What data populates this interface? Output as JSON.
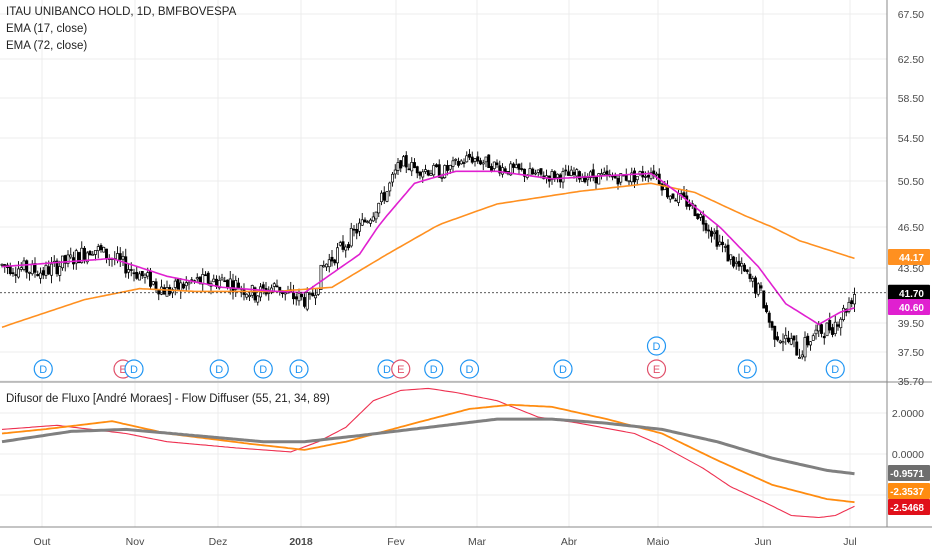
{
  "header": {
    "symbol_line": "ITAU UNIBANCO HOLD, 1D, BMFBOVESPA",
    "ema_fast_label": "EMA (17, close)",
    "ema_slow_label": "EMA (72, close)",
    "indicator_label": "Difusor de Fluxo [André Moraes] - Flow Diffuser (55, 21, 34, 89)"
  },
  "colors": {
    "up": "#ffffff",
    "down": "#000000",
    "ema_fast": "#e020d0",
    "ema_slow": "#ff9020",
    "ind_red": "#ee3050",
    "ind_orange": "#ff8c10",
    "ind_gray": "#808080",
    "dividend": "#2196f3",
    "earnings": "#e0506a"
  },
  "chart_data": [
    {
      "type": "candlestick",
      "title": "ITAU UNIBANCO HOLD, 1D, BMFBOVESPA",
      "x_ticks": [
        "Out",
        "Nov",
        "Dez",
        "2018",
        "Fev",
        "Mar",
        "Abr",
        "Maio",
        "Jun",
        "Jul"
      ],
      "y_ticks": [
        "67.50",
        "62.50",
        "58.50",
        "54.50",
        "50.50",
        "46.50",
        "43.50",
        "39.50",
        "37.50",
        "35.70"
      ],
      "ylim": [
        35.7,
        67.5
      ],
      "last_price": "41.70",
      "price_waypoints": [
        [
          0,
          43.7
        ],
        [
          15,
          43.2
        ],
        [
          25,
          44.1
        ],
        [
          33,
          45.0
        ],
        [
          42,
          44.0
        ],
        [
          52,
          42.8
        ],
        [
          60,
          41.8
        ],
        [
          70,
          42.5
        ],
        [
          82,
          42.6
        ],
        [
          92,
          41.6
        ],
        [
          100,
          42.2
        ],
        [
          104,
          41.5
        ],
        [
          112,
          41.1
        ],
        [
          117,
          43.6
        ],
        [
          124,
          45.1
        ],
        [
          134,
          47.5
        ],
        [
          140,
          49.6
        ],
        [
          145,
          52.3
        ],
        [
          150,
          51.7
        ],
        [
          160,
          51.3
        ],
        [
          170,
          52.7
        ],
        [
          175,
          52.3
        ],
        [
          182,
          51.7
        ],
        [
          195,
          51.0
        ],
        [
          210,
          51.0
        ],
        [
          222,
          50.8
        ],
        [
          230,
          50.9
        ],
        [
          237,
          51.5
        ],
        [
          242,
          49.5
        ],
        [
          250,
          48.5
        ],
        [
          258,
          46.3
        ],
        [
          264,
          44.4
        ],
        [
          270,
          43.1
        ],
        [
          276,
          41.6
        ],
        [
          280,
          39.0
        ],
        [
          287,
          38.1
        ],
        [
          290,
          37.5
        ],
        [
          295,
          38.7
        ],
        [
          302,
          39.3
        ],
        [
          306,
          40.3
        ],
        [
          310,
          41.7
        ]
      ],
      "ema_fast_waypoints": [
        [
          0,
          43.6
        ],
        [
          40,
          44.2
        ],
        [
          60,
          42.9
        ],
        [
          80,
          42.1
        ],
        [
          100,
          41.8
        ],
        [
          110,
          41.7
        ],
        [
          130,
          44.5
        ],
        [
          140,
          47.5
        ],
        [
          150,
          50.3
        ],
        [
          165,
          51.4
        ],
        [
          180,
          51.4
        ],
        [
          200,
          50.7
        ],
        [
          220,
          51.0
        ],
        [
          236,
          51.2
        ],
        [
          245,
          49.6
        ],
        [
          262,
          46.3
        ],
        [
          275,
          43.6
        ],
        [
          285,
          40.9
        ],
        [
          297,
          39.4
        ],
        [
          305,
          40.3
        ],
        [
          310,
          40.6
        ]
      ],
      "ema_slow_waypoints": [
        [
          0,
          39.2
        ],
        [
          30,
          41.2
        ],
        [
          50,
          42.0
        ],
        [
          70,
          41.8
        ],
        [
          100,
          41.8
        ],
        [
          120,
          42.1
        ],
        [
          140,
          44.5
        ],
        [
          160,
          46.8
        ],
        [
          180,
          48.5
        ],
        [
          210,
          49.6
        ],
        [
          236,
          50.3
        ],
        [
          252,
          49.5
        ],
        [
          270,
          47.5
        ],
        [
          290,
          45.5
        ],
        [
          310,
          44.2
        ]
      ],
      "price_tags": {
        "ema_slow": "44.17",
        "last": "41.70",
        "ema_fast": "40.60"
      },
      "events": [
        {
          "kind": "D",
          "x": 15
        },
        {
          "kind": "E",
          "x": 44
        },
        {
          "kind": "D",
          "x": 48
        },
        {
          "kind": "D",
          "x": 79
        },
        {
          "kind": "D",
          "x": 95
        },
        {
          "kind": "D",
          "x": 108
        },
        {
          "kind": "D",
          "x": 140
        },
        {
          "kind": "E",
          "x": 145
        },
        {
          "kind": "D",
          "x": 157
        },
        {
          "kind": "D",
          "x": 170
        },
        {
          "kind": "D",
          "x": 204
        },
        {
          "kind": "D",
          "x": 238,
          "row": 2
        },
        {
          "kind": "E",
          "x": 238
        },
        {
          "kind": "D",
          "x": 271
        },
        {
          "kind": "D",
          "x": 303
        }
      ]
    },
    {
      "type": "line",
      "title": "Difusor de Fluxo [André Moraes] - Flow Diffuser (55, 21, 34, 89)",
      "y_ticks": [
        "2.0000",
        "0.0000"
      ],
      "ylim": [
        -3.3,
        3.2
      ],
      "series": [
        {
          "color": "red",
          "points": [
            [
              0,
              1.2
            ],
            [
              20,
              1.4
            ],
            [
              45,
              1.0
            ],
            [
              60,
              0.6
            ],
            [
              85,
              0.3
            ],
            [
              105,
              0.1
            ],
            [
              115,
              0.6
            ],
            [
              125,
              1.3
            ],
            [
              135,
              2.6
            ],
            [
              145,
              3.1
            ],
            [
              155,
              3.2
            ],
            [
              165,
              3.0
            ],
            [
              180,
              2.6
            ],
            [
              195,
              1.8
            ],
            [
              210,
              1.5
            ],
            [
              230,
              1.0
            ],
            [
              240,
              0.4
            ],
            [
              255,
              -0.7
            ],
            [
              265,
              -1.6
            ],
            [
              278,
              -2.4
            ],
            [
              287,
              -3.0
            ],
            [
              297,
              -3.1
            ],
            [
              303,
              -3.0
            ],
            [
              310,
              -2.55
            ]
          ]
        },
        {
          "color": "orange",
          "points": [
            [
              0,
              1.0
            ],
            [
              15,
              1.2
            ],
            [
              40,
              1.6
            ],
            [
              60,
              1.0
            ],
            [
              90,
              0.5
            ],
            [
              110,
              0.2
            ],
            [
              125,
              0.6
            ],
            [
              150,
              1.5
            ],
            [
              170,
              2.2
            ],
            [
              185,
              2.4
            ],
            [
              200,
              2.3
            ],
            [
              220,
              1.7
            ],
            [
              240,
              1.0
            ],
            [
              260,
              -0.3
            ],
            [
              280,
              -1.5
            ],
            [
              300,
              -2.2
            ],
            [
              310,
              -2.35
            ]
          ]
        },
        {
          "color": "gray",
          "points": [
            [
              0,
              0.6
            ],
            [
              25,
              1.1
            ],
            [
              45,
              1.2
            ],
            [
              70,
              0.9
            ],
            [
              95,
              0.6
            ],
            [
              110,
              0.6
            ],
            [
              130,
              0.9
            ],
            [
              155,
              1.3
            ],
            [
              180,
              1.7
            ],
            [
              200,
              1.7
            ],
            [
              220,
              1.5
            ],
            [
              240,
              1.2
            ],
            [
              260,
              0.6
            ],
            [
              280,
              -0.2
            ],
            [
              300,
              -0.8
            ],
            [
              310,
              -0.96
            ]
          ]
        }
      ],
      "value_tags": {
        "gray": "-0.9571",
        "orange": "-2.3537",
        "red": "-2.5468"
      }
    }
  ]
}
